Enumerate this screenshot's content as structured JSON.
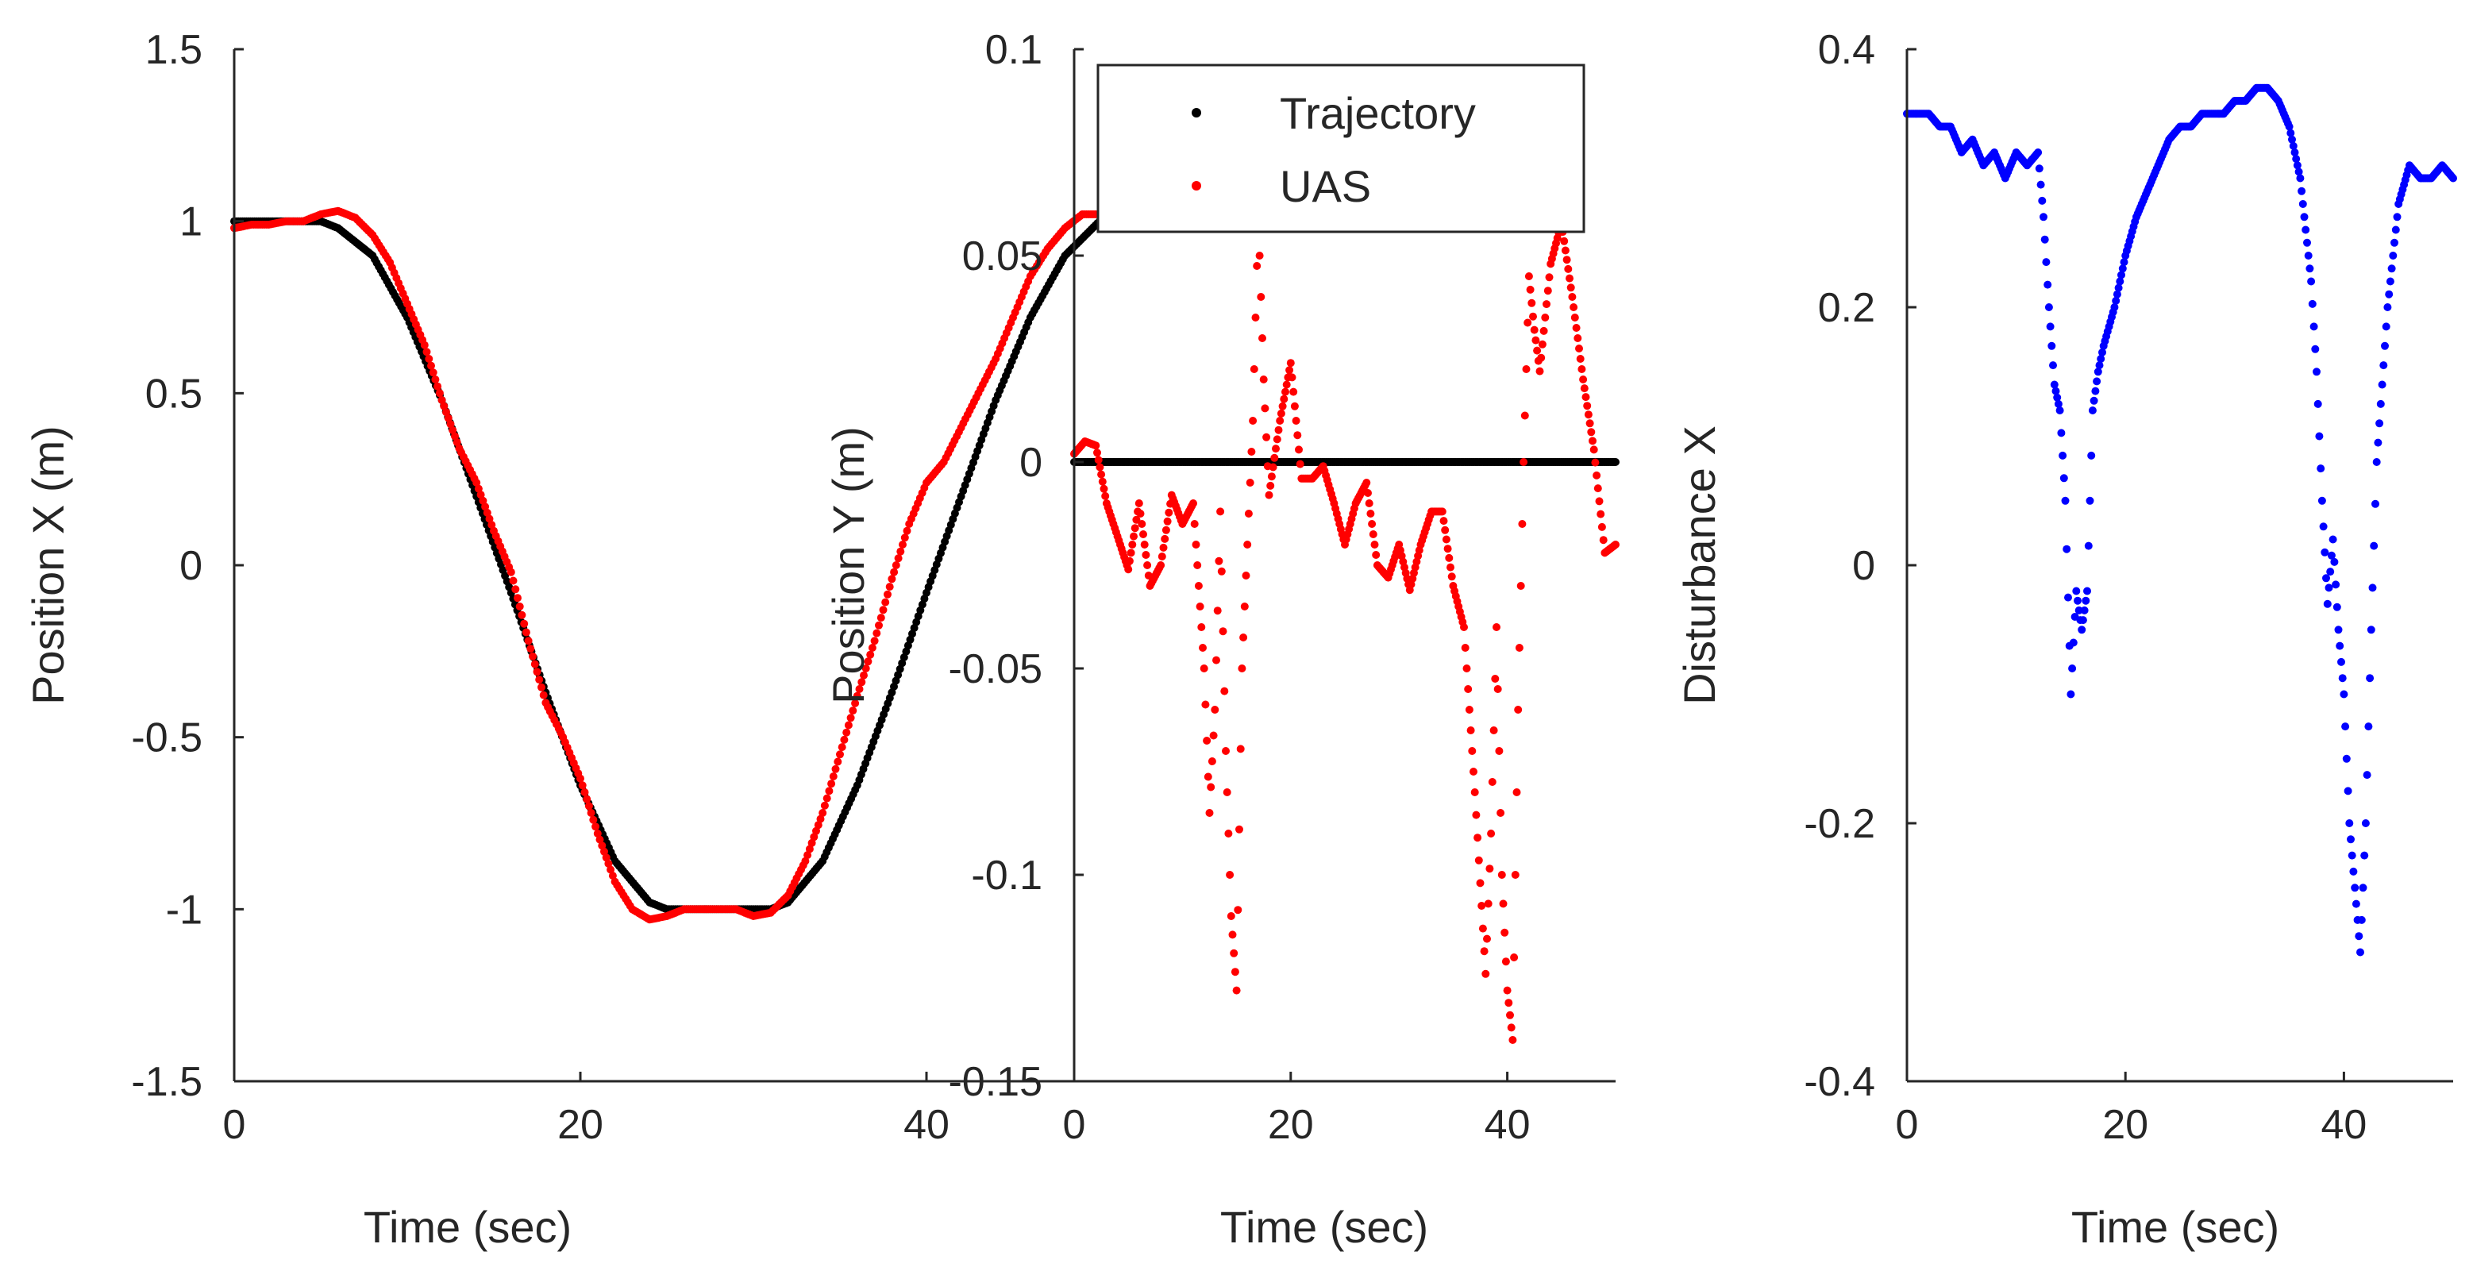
{
  "colors": {
    "trajectory": "#000000",
    "uas": "#ff0000",
    "disturbance": "#0000ff",
    "axis": "#262626",
    "background": "#ffffff"
  },
  "legend": {
    "items": [
      {
        "label": "Trajectory",
        "color": "#000000"
      },
      {
        "label": "UAS",
        "color": "#ff0000"
      }
    ],
    "placement": "top-center of middle panel"
  },
  "chart_data": [
    {
      "type": "scatter",
      "panel": "left",
      "xlabel": "Time (sec)",
      "ylabel": "Position X (m)",
      "xlim": [
        0,
        50
      ],
      "ylim": [
        -1.5,
        1.5
      ],
      "xticks": [
        0,
        20,
        40
      ],
      "xtick_labels": [
        "0",
        "20",
        "40"
      ],
      "yticks": [
        -1.5,
        -1,
        -0.5,
        0,
        0.5,
        1,
        1.5
      ],
      "ytick_labels": [
        "-1.5",
        "-1",
        "-0.5",
        "0",
        "0.5",
        "1",
        "1.5"
      ],
      "series": [
        {
          "name": "Trajectory",
          "color": "#000000",
          "marker": "dot",
          "x": [
            0,
            2,
            4,
            5,
            6,
            8,
            10,
            12,
            14,
            16,
            18,
            20,
            22,
            24,
            25,
            26,
            28,
            30,
            31,
            32,
            34,
            36,
            38,
            40,
            42,
            44,
            46,
            48,
            50
          ],
          "y": [
            1.0,
            1.0,
            1.0,
            1.0,
            0.98,
            0.9,
            0.72,
            0.48,
            0.2,
            -0.08,
            -0.37,
            -0.64,
            -0.86,
            -0.98,
            -1.0,
            -1.0,
            -1.0,
            -1.0,
            -1.0,
            -0.98,
            -0.86,
            -0.64,
            -0.37,
            -0.08,
            0.2,
            0.48,
            0.72,
            0.9,
            1.0
          ]
        },
        {
          "name": "UAS",
          "color": "#ff0000",
          "marker": "dot",
          "x": [
            0,
            1,
            2,
            3,
            4,
            5,
            6,
            7,
            8,
            9,
            10,
            11,
            12,
            13,
            14,
            15,
            16,
            17,
            18,
            19,
            20,
            21,
            22,
            23,
            24,
            25,
            26,
            27,
            28,
            29,
            30,
            31,
            32,
            33,
            34,
            35,
            36,
            37,
            38,
            39,
            40,
            41,
            42,
            43,
            44,
            45,
            46,
            47,
            48,
            49,
            50
          ],
          "y": [
            0.98,
            0.99,
            0.99,
            1.0,
            1.0,
            1.02,
            1.03,
            1.01,
            0.96,
            0.88,
            0.76,
            0.64,
            0.48,
            0.34,
            0.24,
            0.1,
            -0.02,
            -0.22,
            -0.4,
            -0.5,
            -0.62,
            -0.78,
            -0.92,
            -1.0,
            -1.03,
            -1.02,
            -1.0,
            -1.0,
            -1.0,
            -1.0,
            -1.02,
            -1.01,
            -0.96,
            -0.86,
            -0.72,
            -0.55,
            -0.38,
            -0.22,
            -0.04,
            0.12,
            0.24,
            0.3,
            0.4,
            0.5,
            0.6,
            0.72,
            0.84,
            0.92,
            0.98,
            1.02,
            1.02
          ]
        }
      ]
    },
    {
      "type": "scatter",
      "panel": "middle",
      "xlabel": "Time (sec)",
      "ylabel": "Position Y (m)",
      "xlim": [
        0,
        50
      ],
      "ylim": [
        -0.15,
        0.1
      ],
      "xticks": [
        0,
        20,
        40
      ],
      "xtick_labels": [
        "0",
        "20",
        "40"
      ],
      "yticks": [
        -0.15,
        -0.1,
        -0.05,
        0,
        0.05,
        0.1
      ],
      "ytick_labels": [
        "-0.15",
        "-0.1",
        "-0.05",
        "0",
        "0.05",
        "0.1"
      ],
      "series": [
        {
          "name": "Trajectory",
          "color": "#000000",
          "marker": "dot",
          "x": [
            0,
            50
          ],
          "y": [
            0,
            0
          ]
        },
        {
          "name": "UAS",
          "color": "#ff0000",
          "marker": "dot",
          "x": [
            0,
            1,
            2,
            3,
            4,
            5,
            6,
            7,
            8,
            9,
            10,
            11,
            12,
            12.5,
            13,
            13.5,
            14,
            14.5,
            15,
            15.5,
            16,
            16.5,
            17,
            17.5,
            18,
            19,
            20,
            21,
            22,
            23,
            24,
            25,
            26,
            27,
            28,
            29,
            30,
            31,
            32,
            33,
            34,
            35,
            36,
            37,
            38,
            38.5,
            39,
            39.5,
            40,
            40.5,
            41,
            41.5,
            42,
            42.5,
            43,
            44,
            45,
            46,
            47,
            48,
            49,
            50
          ],
          "y": [
            0.002,
            0.005,
            0.004,
            -0.01,
            -0.018,
            -0.026,
            -0.01,
            -0.03,
            -0.025,
            -0.008,
            -0.015,
            -0.01,
            -0.05,
            -0.085,
            -0.06,
            -0.012,
            -0.07,
            -0.11,
            -0.128,
            -0.05,
            -0.02,
            0.01,
            0.06,
            0.02,
            -0.008,
            0.01,
            0.024,
            -0.004,
            -0.004,
            -0.001,
            -0.01,
            -0.02,
            -0.01,
            -0.005,
            -0.025,
            -0.028,
            -0.02,
            -0.031,
            -0.02,
            -0.012,
            -0.012,
            -0.03,
            -0.04,
            -0.08,
            -0.124,
            -0.09,
            -0.04,
            -0.1,
            -0.128,
            -0.14,
            -0.06,
            0.0,
            0.045,
            0.032,
            0.022,
            0.048,
            0.058,
            0.04,
            0.02,
            0.003,
            -0.022,
            -0.02
          ]
        }
      ]
    },
    {
      "type": "scatter",
      "panel": "right",
      "xlabel": "Time (sec)",
      "ylabel": "Disturbance X",
      "xlim": [
        0,
        50
      ],
      "ylim": [
        -0.4,
        0.4
      ],
      "xticks": [
        0,
        20,
        40
      ],
      "xtick_labels": [
        "0",
        "20",
        "40"
      ],
      "yticks": [
        -0.4,
        -0.2,
        0,
        0.2,
        0.4
      ],
      "ytick_labels": [
        "-0.4",
        "-0.2",
        "0",
        "0.2",
        "0.4"
      ],
      "series": [
        {
          "name": "Disturbance",
          "color": "#0000ff",
          "marker": "dot",
          "x": [
            0,
            1,
            2,
            3,
            4,
            5,
            6,
            7,
            8,
            9,
            10,
            11,
            12,
            12.5,
            13,
            13.5,
            14,
            14.5,
            15,
            15.5,
            16,
            16.5,
            17,
            17.5,
            18,
            19,
            20,
            21,
            22,
            23,
            24,
            25,
            26,
            27,
            28,
            29,
            30,
            31,
            32,
            33,
            34,
            35,
            36,
            37,
            37.5,
            38,
            38.5,
            39,
            39.5,
            40,
            40.5,
            41,
            41.5,
            42,
            42.5,
            43,
            44,
            45,
            46,
            47,
            48,
            49,
            50
          ],
          "y": [
            0.35,
            0.35,
            0.35,
            0.34,
            0.34,
            0.32,
            0.33,
            0.31,
            0.32,
            0.3,
            0.32,
            0.31,
            0.32,
            0.27,
            0.2,
            0.14,
            0.12,
            0.05,
            -0.1,
            -0.02,
            -0.05,
            -0.02,
            0.12,
            0.15,
            0.17,
            0.2,
            0.24,
            0.27,
            0.29,
            0.31,
            0.33,
            0.34,
            0.34,
            0.35,
            0.35,
            0.35,
            0.36,
            0.36,
            0.37,
            0.37,
            0.36,
            0.34,
            0.3,
            0.22,
            0.15,
            0.05,
            -0.03,
            0.02,
            -0.05,
            -0.1,
            -0.2,
            -0.25,
            -0.3,
            -0.2,
            -0.05,
            0.08,
            0.2,
            0.28,
            0.31,
            0.3,
            0.3,
            0.31,
            0.3
          ]
        }
      ]
    }
  ]
}
